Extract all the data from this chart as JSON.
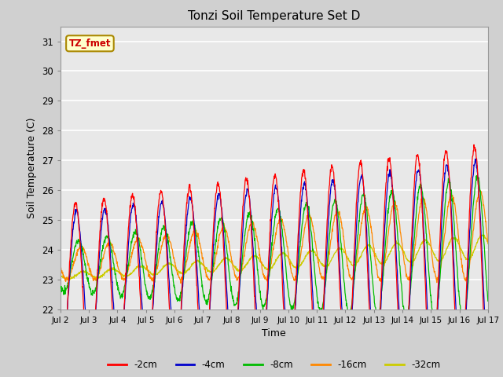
{
  "title": "Tonzi Soil Temperature Set D",
  "xlabel": "Time",
  "ylabel": "Soil Temperature (C)",
  "ylim": [
    22.0,
    31.5
  ],
  "xlim": [
    0.0,
    15.0
  ],
  "x_tick_labels": [
    "Jul 2",
    "Jul 3",
    "Jul 4",
    "Jul 5",
    "Jul 6",
    "Jul 7",
    "Jul 8",
    "Jul 9",
    "Jul 10",
    "Jul 11",
    "Jul 12",
    "Jul 13",
    "Jul 14",
    "Jul 15",
    "Jul 16",
    "Jul 17"
  ],
  "x_tick_positions": [
    0,
    1,
    2,
    3,
    4,
    5,
    6,
    7,
    8,
    9,
    10,
    11,
    12,
    13,
    14,
    15
  ],
  "yticks": [
    22.0,
    23.0,
    24.0,
    25.0,
    26.0,
    27.0,
    28.0,
    29.0,
    30.0,
    31.0
  ],
  "legend_labels": [
    "-2cm",
    "-4cm",
    "-8cm",
    "-16cm",
    "-32cm"
  ],
  "legend_colors": [
    "#ff0000",
    "#0000cc",
    "#00bb00",
    "#ff8800",
    "#cccc00"
  ],
  "annotation_text": "TZ_fmet",
  "annotation_bg": "#ffffcc",
  "annotation_border": "#aa8800",
  "fig_bg": "#d0d0d0",
  "plot_bg": "#e8e8e8",
  "n_days": 15,
  "samples_per_day": 96,
  "seed": 42
}
